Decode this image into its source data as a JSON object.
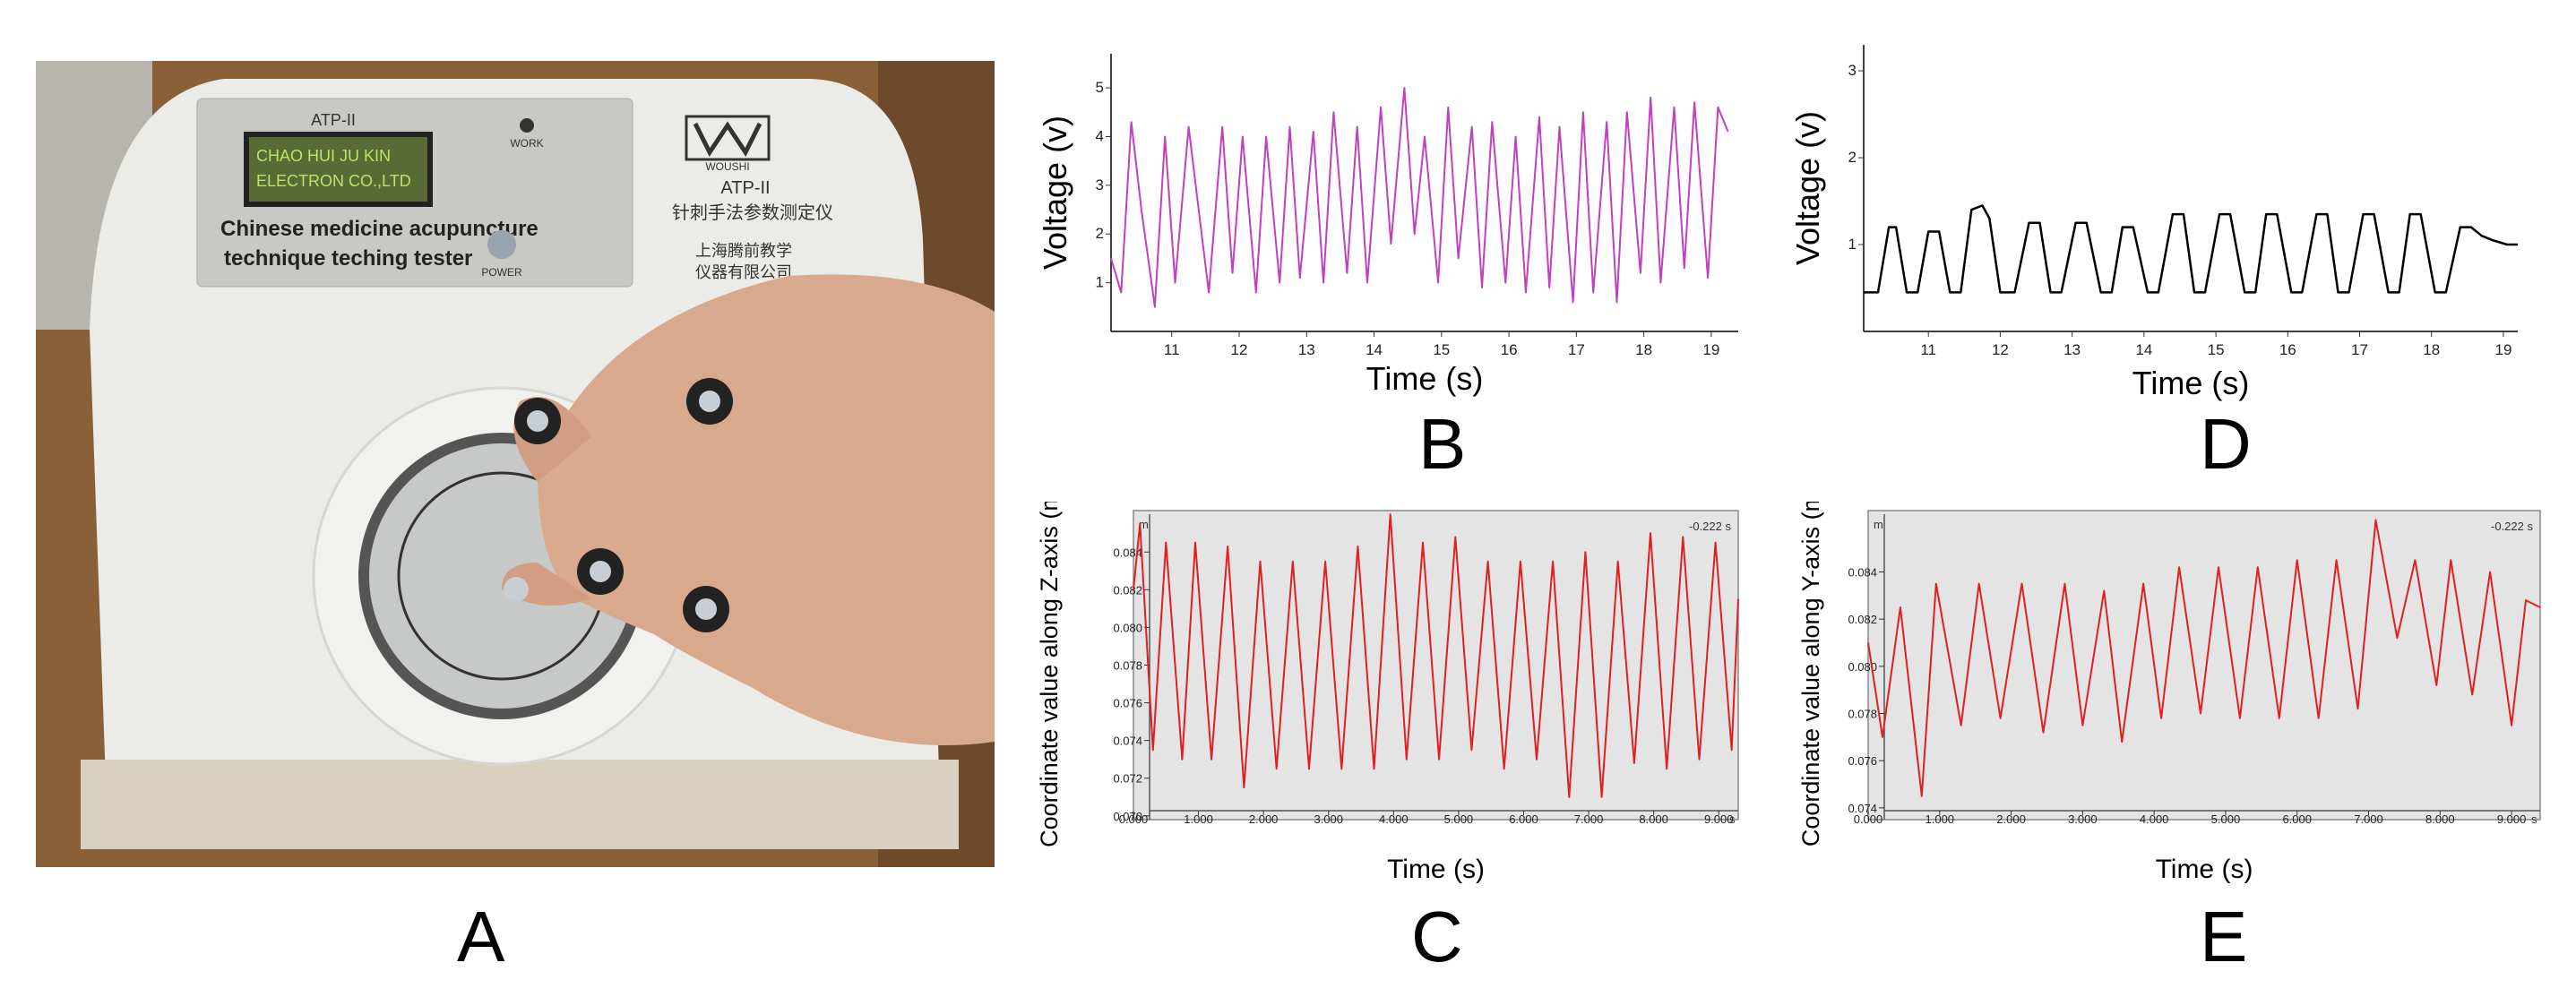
{
  "labels": {
    "A": "A",
    "B": "B",
    "C": "C",
    "D": "D",
    "E": "E"
  },
  "photo": {
    "model": "ATP-II",
    "lcd_line1": "CHAO HUI JU KIN",
    "lcd_line2": "ELECTRON CO.,LTD",
    "english_name_line1": "Chinese  medicine acupuncture",
    "english_name_line2": "technique teching tester",
    "brand": "WOUSHI",
    "brand_model": "ATP-II",
    "chinese_name": "针刺手法参数测定仪",
    "maker_line1": "上海腾前教学",
    "maker_line2": "仪器有限公司",
    "work_label": "WORK",
    "power_label": "POWER"
  },
  "colors": {
    "voltage_B": "#c040c0",
    "voltage_D": "#000000",
    "coord": "#e02020",
    "coord_bg": "#e4e4e4"
  },
  "chart_data": [
    {
      "id": "B",
      "type": "line",
      "ylabel": "Voltage (v)",
      "xlabel": "Time (s)",
      "xlim": [
        10.1,
        19.4
      ],
      "ylim": [
        0,
        5.7
      ],
      "xticks": [
        11,
        12,
        13,
        14,
        15,
        16,
        17,
        18,
        19
      ],
      "yticks": [
        1,
        2,
        3,
        4,
        5
      ],
      "x": [
        10.1,
        10.25,
        10.4,
        10.55,
        10.75,
        10.9,
        11.05,
        11.25,
        11.4,
        11.55,
        11.75,
        11.9,
        12.05,
        12.25,
        12.4,
        12.6,
        12.75,
        12.9,
        13.1,
        13.25,
        13.4,
        13.6,
        13.75,
        13.9,
        14.1,
        14.25,
        14.45,
        14.6,
        14.75,
        14.95,
        15.1,
        15.25,
        15.45,
        15.6,
        15.75,
        15.95,
        16.1,
        16.25,
        16.45,
        16.6,
        16.75,
        16.95,
        17.1,
        17.25,
        17.45,
        17.6,
        17.75,
        17.95,
        18.1,
        18.25,
        18.45,
        18.6,
        18.75,
        18.95,
        19.1,
        19.25
      ],
      "y": [
        1.5,
        0.8,
        4.3,
        2.5,
        0.5,
        4.0,
        1.0,
        4.2,
        2.5,
        0.8,
        4.2,
        1.2,
        4.0,
        0.8,
        4.0,
        1.0,
        4.2,
        1.1,
        4.1,
        1.0,
        4.5,
        1.2,
        4.2,
        1.0,
        4.6,
        1.8,
        5.0,
        2.0,
        4.0,
        1.0,
        4.6,
        1.5,
        4.2,
        0.9,
        4.3,
        1.0,
        4.0,
        0.8,
        4.4,
        0.9,
        4.2,
        0.6,
        4.5,
        0.8,
        4.3,
        0.6,
        4.5,
        1.2,
        4.8,
        1.0,
        4.6,
        1.3,
        4.7,
        1.1,
        4.6,
        4.1
      ],
      "tick_labels_x": [
        "11",
        "12",
        "13",
        "14",
        "15",
        "16",
        "17",
        "18",
        "19"
      ],
      "tick_labels_y": [
        "1",
        "2",
        "3",
        "4",
        "5"
      ]
    },
    {
      "id": "D",
      "type": "line",
      "ylabel": "Voltage (v)",
      "xlabel": "Time (s)",
      "xlim": [
        10.1,
        19.2
      ],
      "ylim": [
        0,
        3.3
      ],
      "xticks": [
        11,
        12,
        13,
        14,
        15,
        16,
        17,
        18,
        19
      ],
      "yticks": [
        1,
        2,
        3
      ],
      "x": [
        10.1,
        10.3,
        10.45,
        10.55,
        10.7,
        10.85,
        11.0,
        11.15,
        11.3,
        11.45,
        11.6,
        11.75,
        11.85,
        12.0,
        12.2,
        12.4,
        12.55,
        12.7,
        12.85,
        13.05,
        13.2,
        13.4,
        13.55,
        13.7,
        13.85,
        14.05,
        14.2,
        14.4,
        14.55,
        14.7,
        14.85,
        15.05,
        15.2,
        15.4,
        15.55,
        15.7,
        15.85,
        16.05,
        16.2,
        16.4,
        16.55,
        16.7,
        16.85,
        17.05,
        17.2,
        17.4,
        17.55,
        17.7,
        17.85,
        18.05,
        18.2,
        18.4,
        18.55,
        18.7,
        18.85,
        19.05,
        19.2
      ],
      "y": [
        0.45,
        0.45,
        1.2,
        1.2,
        0.45,
        0.45,
        1.15,
        1.15,
        0.45,
        0.45,
        1.4,
        1.45,
        1.3,
        0.45,
        0.45,
        1.25,
        1.25,
        0.45,
        0.45,
        1.25,
        1.25,
        0.45,
        0.45,
        1.2,
        1.2,
        0.45,
        0.45,
        1.35,
        1.35,
        0.45,
        0.45,
        1.35,
        1.35,
        0.45,
        0.45,
        1.35,
        1.35,
        0.45,
        0.45,
        1.35,
        1.35,
        0.45,
        0.45,
        1.35,
        1.35,
        0.45,
        0.45,
        1.35,
        1.35,
        0.45,
        0.45,
        1.2,
        1.2,
        1.1,
        1.05,
        1.0,
        1.0
      ],
      "tick_labels_x": [
        "11",
        "12",
        "13",
        "14",
        "15",
        "16",
        "17",
        "18",
        "19"
      ],
      "tick_labels_y": [
        "1",
        "2",
        "3"
      ]
    },
    {
      "id": "C",
      "type": "line",
      "ylabel": "Coordinate value along Z-axis (m)",
      "xlabel": "Time (s)",
      "xlim": [
        0,
        9.3
      ],
      "ylim": [
        0.0698,
        0.0862
      ],
      "xticks": [
        0,
        1,
        2,
        3,
        4,
        5,
        6,
        7,
        8,
        9
      ],
      "yticks": [
        0.07,
        0.072,
        0.074,
        0.076,
        0.078,
        0.08,
        0.082,
        0.084
      ],
      "tick_labels_x": [
        "0.000",
        "1.000",
        "2.000",
        "3.000",
        "4.000",
        "5.000",
        "6.000",
        "7.000",
        "8.000",
        "9.000"
      ],
      "tick_labels_y": [
        "0.070",
        "0.072",
        "0.074",
        "0.076",
        "0.078",
        "0.080",
        "0.082",
        "0.084"
      ],
      "axis_unit_y": "m",
      "axis_unit_x": "s",
      "corner_readout": "-0.222 s",
      "x": [
        0,
        0.1,
        0.3,
        0.5,
        0.75,
        0.95,
        1.2,
        1.45,
        1.7,
        1.95,
        2.2,
        2.45,
        2.7,
        2.95,
        3.2,
        3.45,
        3.7,
        3.95,
        4.2,
        4.45,
        4.7,
        4.95,
        5.2,
        5.45,
        5.7,
        5.95,
        6.2,
        6.45,
        6.7,
        6.95,
        7.2,
        7.45,
        7.7,
        7.95,
        8.2,
        8.45,
        8.7,
        8.95,
        9.2,
        9.3
      ],
      "y": [
        0.082,
        0.0855,
        0.0735,
        0.0845,
        0.073,
        0.0845,
        0.073,
        0.0843,
        0.0715,
        0.0835,
        0.0725,
        0.0835,
        0.0725,
        0.0835,
        0.0725,
        0.0843,
        0.0725,
        0.086,
        0.073,
        0.0845,
        0.073,
        0.0848,
        0.0735,
        0.0835,
        0.0725,
        0.0835,
        0.073,
        0.0835,
        0.071,
        0.084,
        0.071,
        0.0835,
        0.0728,
        0.085,
        0.0725,
        0.0848,
        0.073,
        0.0845,
        0.0735,
        0.0815
      ],
      "y_sample_note": "peaks ~0.084-0.086, troughs ~0.071-0.074"
    },
    {
      "id": "E",
      "type": "line",
      "ylabel": "Coordinate value along Y-axis (m)",
      "xlabel": "Time (s)",
      "xlim": [
        0,
        9.4
      ],
      "ylim": [
        0.0735,
        0.0866
      ],
      "xticks": [
        0,
        1,
        2,
        3,
        4,
        5,
        6,
        7,
        8,
        9
      ],
      "yticks": [
        0.074,
        0.076,
        0.078,
        0.08,
        0.082,
        0.084
      ],
      "tick_labels_x": [
        "0.000",
        "1.000",
        "2.000",
        "3.000",
        "4.000",
        "5.000",
        "6.000",
        "7.000",
        "8.000",
        "9.000"
      ],
      "tick_labels_y": [
        "0.074",
        "0.076",
        "0.078",
        "0.080",
        "0.082",
        "0.084"
      ],
      "axis_unit_y": "m",
      "axis_unit_x": "s",
      "corner_readout": "-0.222 s",
      "x": [
        0,
        0.2,
        0.45,
        0.75,
        0.95,
        1.3,
        1.55,
        1.85,
        2.15,
        2.45,
        2.75,
        3.0,
        3.3,
        3.55,
        3.85,
        4.1,
        4.35,
        4.65,
        4.9,
        5.2,
        5.45,
        5.75,
        6.0,
        6.3,
        6.55,
        6.85,
        7.1,
        7.4,
        7.65,
        7.95,
        8.15,
        8.45,
        8.7,
        9.0,
        9.2,
        9.4
      ],
      "y": [
        0.081,
        0.077,
        0.0825,
        0.0745,
        0.0835,
        0.0775,
        0.0835,
        0.0778,
        0.0835,
        0.0772,
        0.0835,
        0.0775,
        0.0832,
        0.0768,
        0.0835,
        0.0778,
        0.0842,
        0.078,
        0.0842,
        0.0778,
        0.0842,
        0.0778,
        0.0845,
        0.0778,
        0.0845,
        0.0782,
        0.0862,
        0.0812,
        0.0845,
        0.0792,
        0.0845,
        0.0788,
        0.084,
        0.0775,
        0.0828,
        0.0825
      ]
    }
  ]
}
